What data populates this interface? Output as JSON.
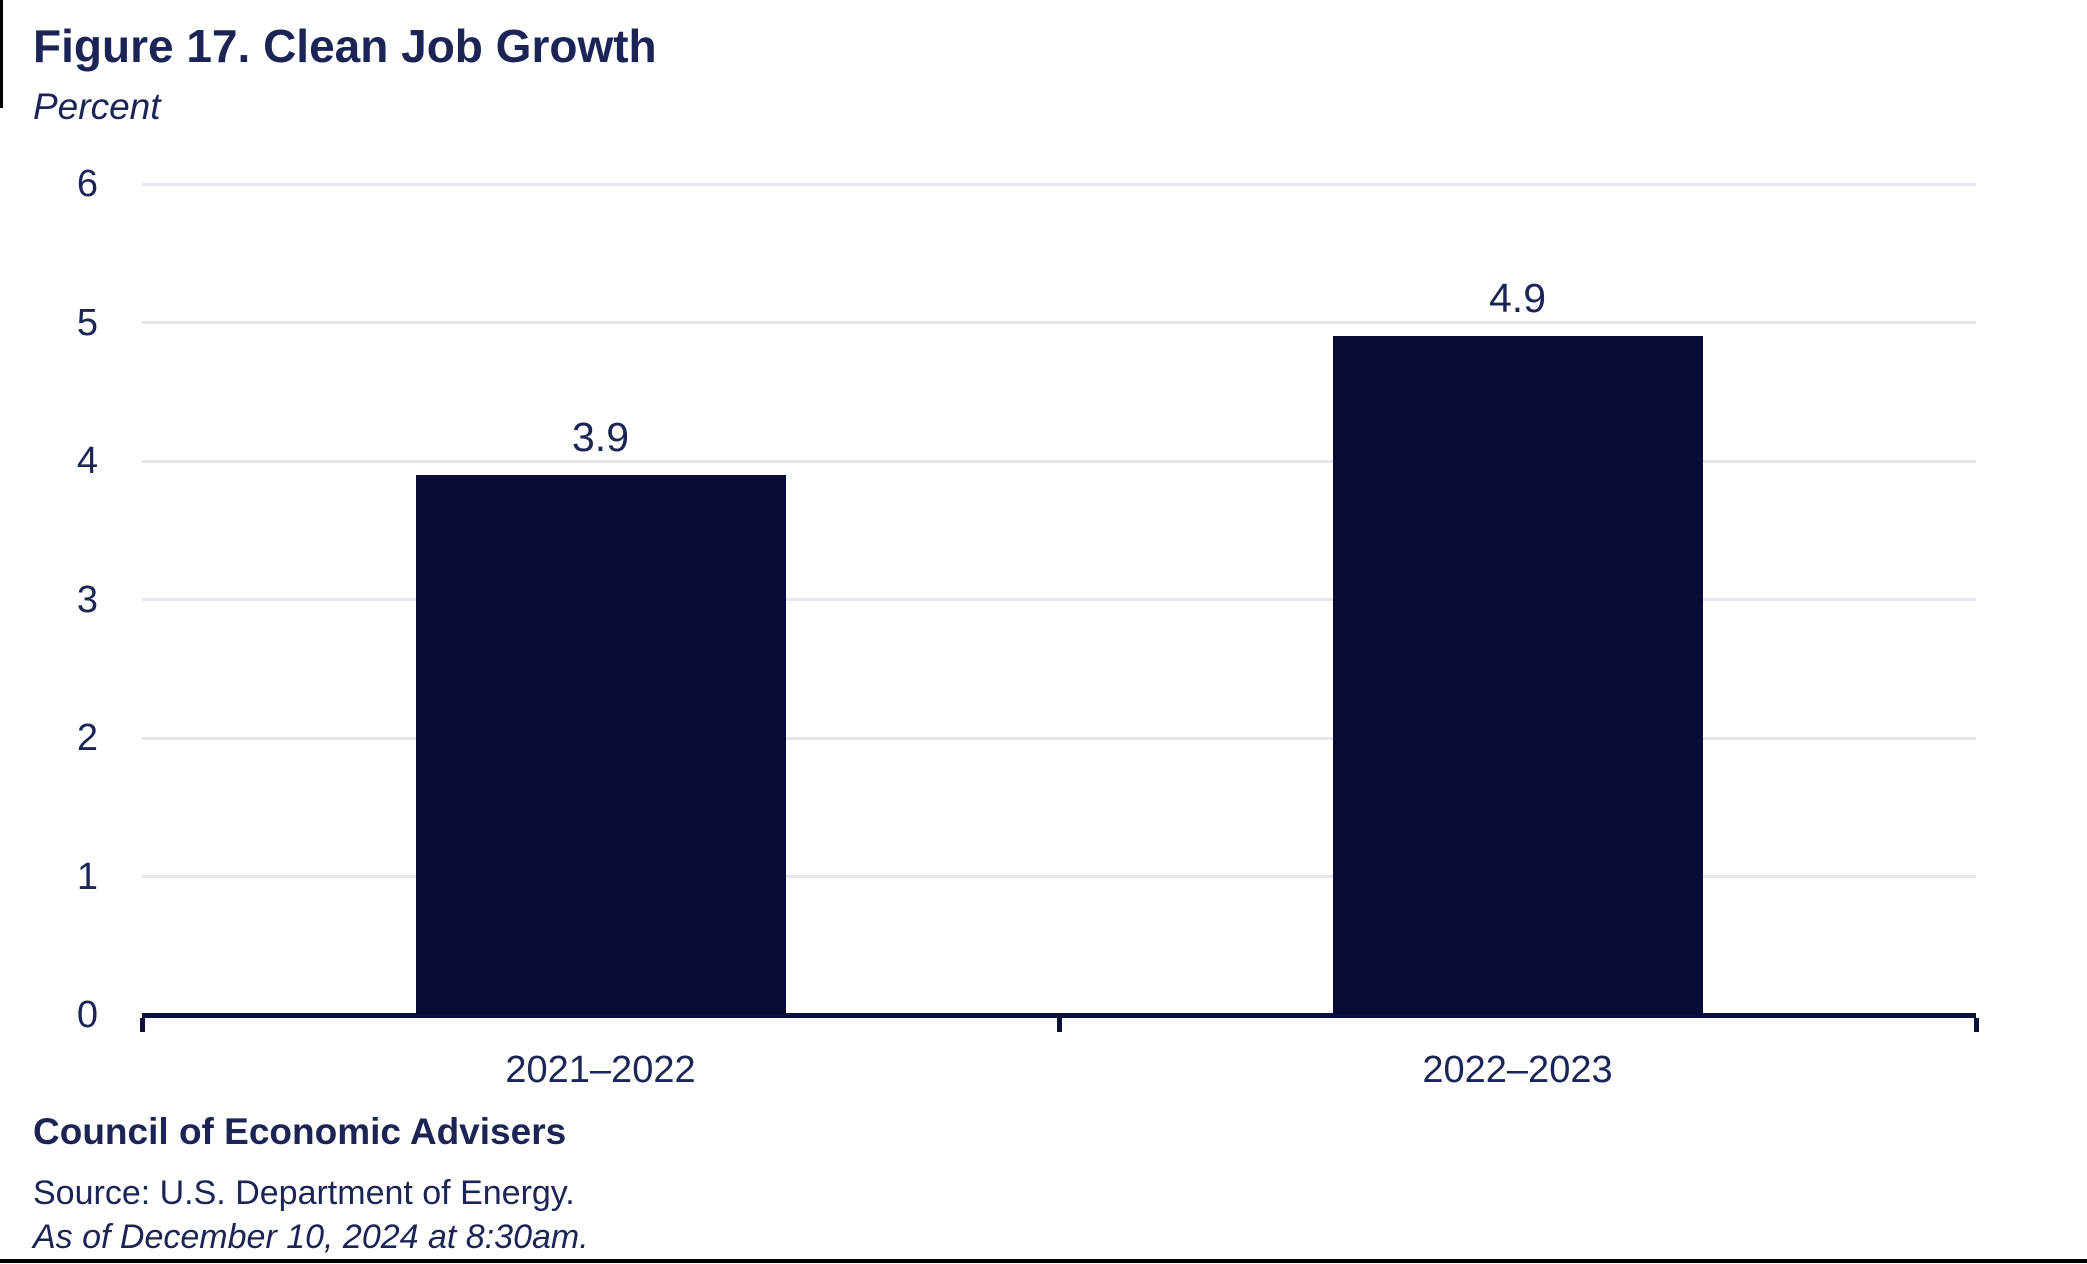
{
  "figure": {
    "title": "Figure 17. Clean Job Growth",
    "units_label": "Percent",
    "footer": {
      "org": "Council of Economic Advisers",
      "source": "Source: U.S. Department of Energy.",
      "as_of": "As of December 10, 2024 at 8:30am."
    }
  },
  "colors": {
    "text_navy": "#1b2454",
    "bar_fill": "#080b36",
    "axis_line": "#0c1038",
    "gridline": "#e4e7f0",
    "background": "#ffffff",
    "bottom_border": "#000000"
  },
  "chart_data": {
    "type": "bar",
    "title": "Figure 17. Clean Job Growth",
    "ylabel": "Percent",
    "xlabel": "",
    "categories": [
      "2021–2022",
      "2022–2023"
    ],
    "values": [
      3.9,
      4.9
    ],
    "data_labels": [
      "3.9",
      "4.9"
    ],
    "yticks": [
      0,
      1,
      2,
      3,
      4,
      5,
      6
    ],
    "ylim": [
      0,
      6
    ],
    "grid": "horizontal",
    "legend_position": "none"
  }
}
